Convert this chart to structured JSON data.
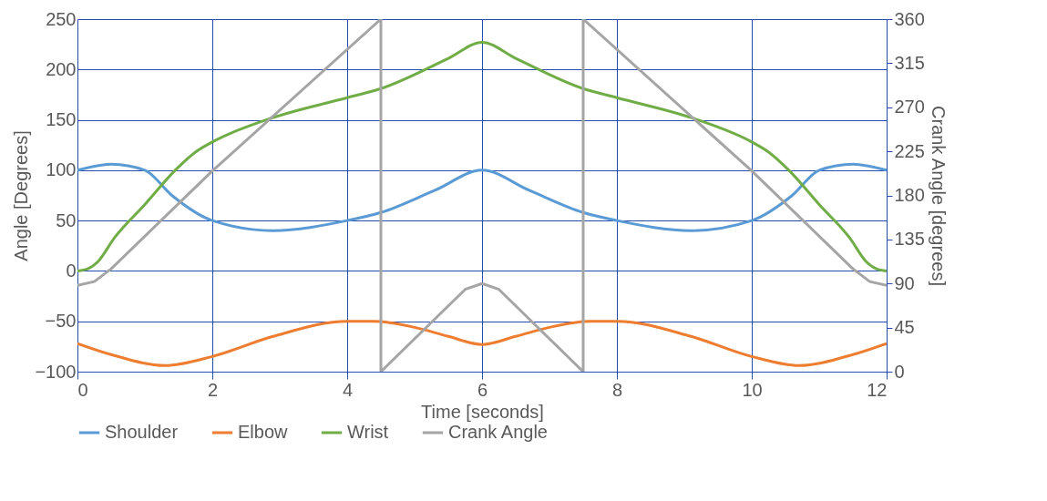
{
  "chart_data": {
    "type": "line",
    "xlabel": "Time [seconds]",
    "ylabel": "Angle [Degrees]",
    "y2label": "Crank Angle [degrees]",
    "xlim": [
      0,
      12
    ],
    "xticks": [
      0,
      2,
      4,
      6,
      8,
      10,
      12
    ],
    "ylim": [
      -100,
      250
    ],
    "yticks": [
      -100,
      -50,
      0,
      50,
      100,
      150,
      200,
      250
    ],
    "y2lim": [
      0,
      360
    ],
    "y2ticks": [
      0,
      45,
      90,
      135,
      180,
      225,
      270,
      315,
      360
    ],
    "grid": true,
    "legend": "bottom",
    "marker": "none",
    "line_style": "solid",
    "series": [
      {
        "name": "Shoulder",
        "color": "#5b9bd5",
        "x": [
          0,
          0.5,
          1,
          1.4,
          2,
          2.9,
          4,
          4.5,
          5.3,
          6,
          6.7,
          7.5,
          8,
          9.1,
          10,
          10.6,
          11,
          11.5,
          12
        ],
        "values": [
          100,
          106,
          100,
          75,
          50,
          40,
          50,
          58,
          80,
          100,
          80,
          58,
          50,
          40,
          50,
          75,
          100,
          106,
          100
        ]
      },
      {
        "name": "Elbow",
        "color": "#ed7d31",
        "x": [
          0,
          0.5,
          1.3,
          2,
          2.9,
          4,
          4.4,
          5,
          5.5,
          6,
          6.5,
          7,
          7.6,
          8,
          9.1,
          10,
          10.7,
          11.5,
          12
        ],
        "values": [
          -72,
          -83,
          -94,
          -85,
          -65,
          -50,
          -50,
          -56,
          -65,
          -73,
          -65,
          -56,
          -50,
          -50,
          -65,
          -85,
          -94,
          -83,
          -72
        ]
      },
      {
        "name": "Wrist",
        "color": "#70ad47",
        "x": [
          0,
          0.15,
          0.3,
          0.55,
          1,
          1.45,
          1.75,
          2,
          2.8,
          4,
          4.5,
          5.5,
          6,
          6.5,
          7.5,
          8,
          9.2,
          10,
          10.25,
          10.55,
          11,
          11.45,
          11.7,
          11.85,
          12
        ],
        "values": [
          0,
          2,
          9,
          33,
          66,
          100,
          118,
          128,
          150,
          172,
          181,
          211,
          227,
          211,
          181,
          172,
          150,
          128,
          118,
          100,
          66,
          33,
          9,
          2,
          0
        ]
      },
      {
        "name": "Crank Angle",
        "color": "#a5a5a5",
        "axis": "y2",
        "x": [
          0,
          0.25,
          0.5,
          2,
          4.5,
          4.5,
          5.75,
          6,
          6.25,
          7.5,
          7.5,
          10,
          11.5,
          11.75,
          12
        ],
        "values": [
          88,
          92,
          105,
          205,
          360,
          0,
          84,
          90,
          84,
          0,
          360,
          205,
          105,
          92,
          88
        ]
      }
    ]
  }
}
